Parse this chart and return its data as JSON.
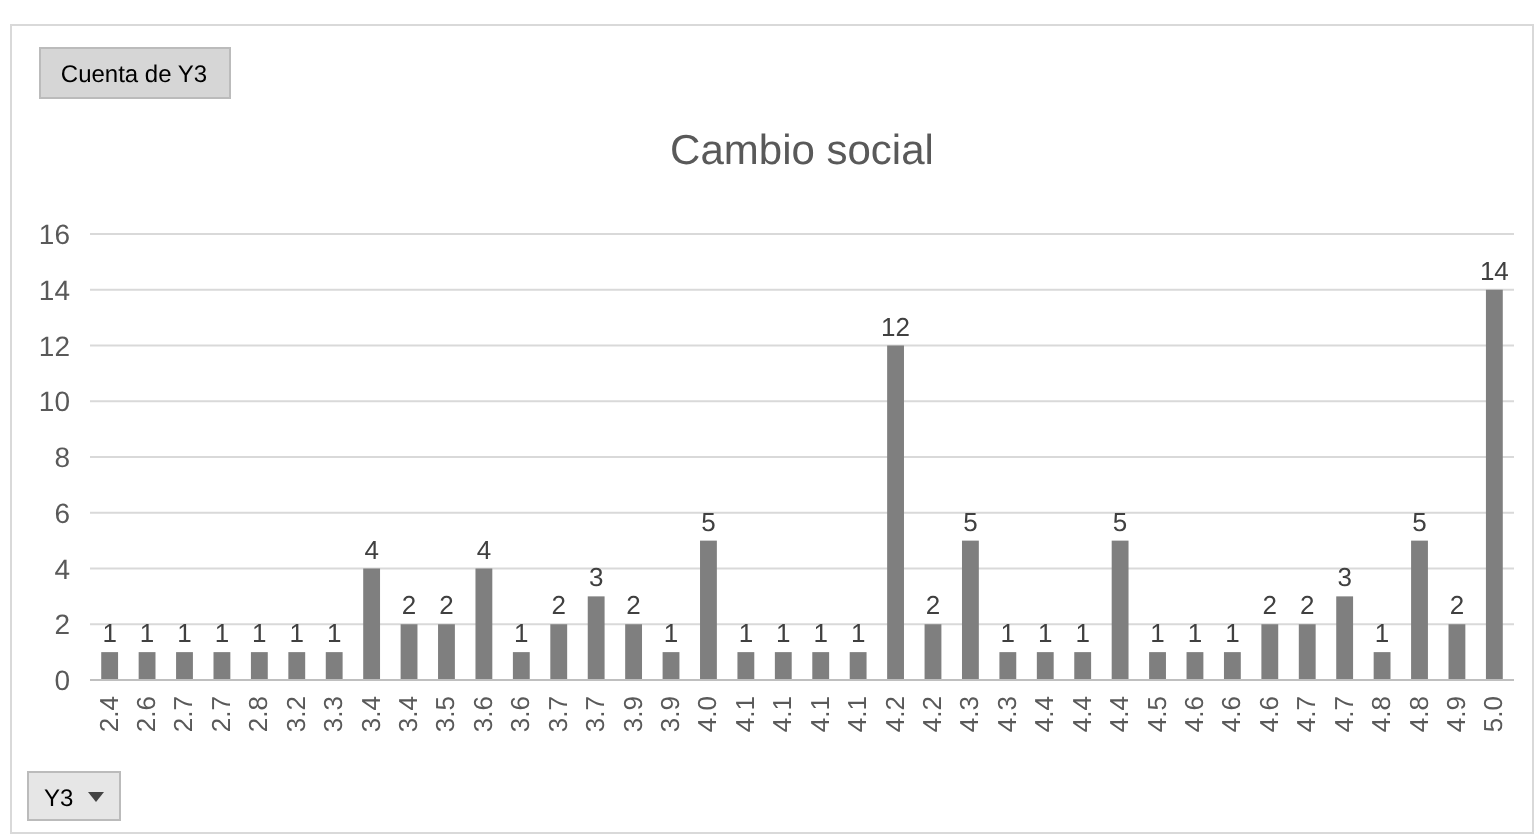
{
  "chart_data": {
    "type": "bar",
    "title": "Cambio social",
    "categories": [
      "2.4",
      "2.6",
      "2.7",
      "2.7",
      "2.8",
      "3.2",
      "3.3",
      "3.4",
      "3.4",
      "3.5",
      "3.6",
      "3.6",
      "3.7",
      "3.7",
      "3.9",
      "3.9",
      "4.0",
      "4.1",
      "4.1",
      "4.1",
      "4.1",
      "4.2",
      "4.2",
      "4.3",
      "4.3",
      "4.4",
      "4.4",
      "4.4",
      "4.5",
      "4.6",
      "4.6",
      "4.6",
      "4.7",
      "4.7",
      "4.8",
      "4.8",
      "4.9",
      "5.0"
    ],
    "values": [
      1,
      1,
      1,
      1,
      1,
      1,
      1,
      4,
      2,
      2,
      4,
      1,
      2,
      3,
      2,
      1,
      5,
      1,
      1,
      1,
      1,
      12,
      2,
      5,
      1,
      1,
      1,
      5,
      1,
      1,
      1,
      2,
      2,
      3,
      1,
      5,
      2,
      14
    ],
    "color": "#7f7f7f",
    "ylim": [
      0,
      16
    ],
    "yticks": [
      0,
      2,
      4,
      6,
      8,
      10,
      12,
      14,
      16
    ],
    "grid": "y",
    "data_labels": true,
    "annotations": [
      "Cuenta de Y3",
      "Y3"
    ]
  }
}
